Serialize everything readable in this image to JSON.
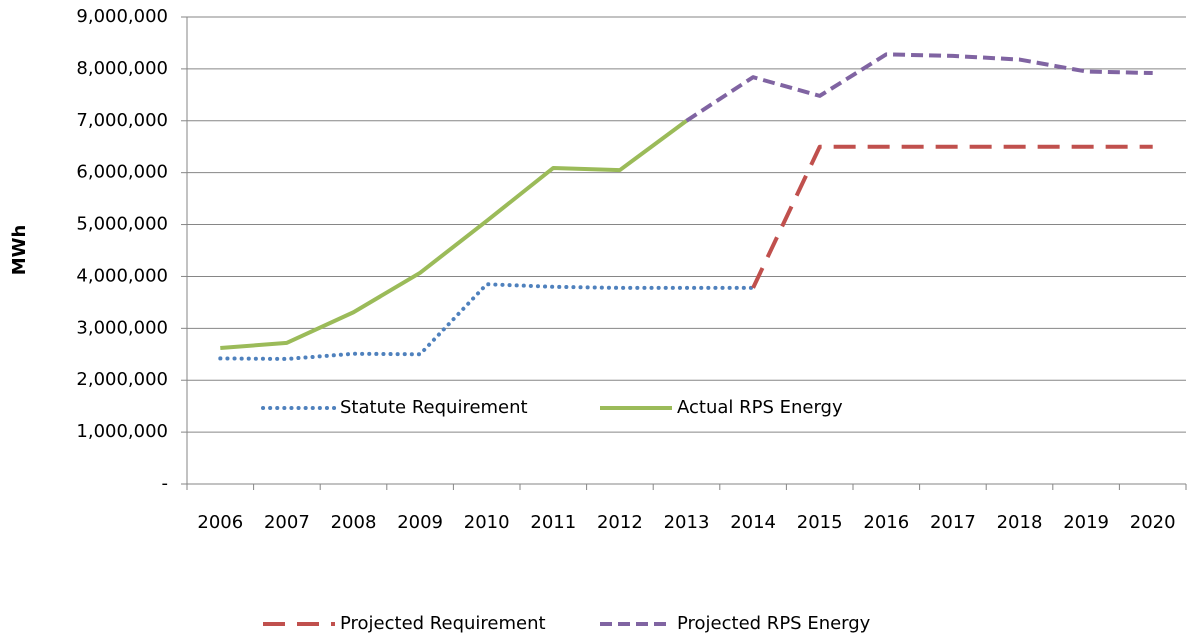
{
  "chart_data": {
    "type": "line",
    "y_label": "MWh",
    "categories": [
      "2006",
      "2007",
      "2008",
      "2009",
      "2010",
      "2011",
      "2012",
      "2013",
      "2014",
      "2015",
      "2016",
      "2017",
      "2018",
      "2019",
      "2020"
    ],
    "series": [
      {
        "name": "Statute Requirement",
        "color": "#4f81bd",
        "style": "dotted",
        "values": [
          2420000,
          2410000,
          2510000,
          2500000,
          3850000,
          3800000,
          3780000,
          3780000,
          3780000,
          null,
          null,
          null,
          null,
          null,
          null
        ]
      },
      {
        "name": "Actual RPS Energy",
        "color": "#9bbb59",
        "style": "solid",
        "values": [
          2620000,
          2720000,
          3310000,
          4070000,
          5070000,
          6090000,
          6050000,
          7000000,
          null,
          null,
          null,
          null,
          null,
          null,
          null
        ]
      },
      {
        "name": "Projected Requirement",
        "color": "#c0504d",
        "style": "longdash",
        "values": [
          null,
          null,
          null,
          null,
          null,
          null,
          null,
          null,
          3780000,
          6500000,
          6500000,
          6500000,
          6500000,
          6500000,
          6500000
        ]
      },
      {
        "name": "Projected RPS Energy",
        "color": "#8064a2",
        "style": "dash",
        "values": [
          null,
          null,
          null,
          null,
          null,
          null,
          null,
          7000000,
          7840000,
          7480000,
          8280000,
          8250000,
          8180000,
          7950000,
          7920000
        ]
      }
    ],
    "ylim": [
      0,
      9000000
    ],
    "yticks": [
      {
        "value": 0,
        "label": "-"
      },
      {
        "value": 1000000,
        "label": "1,000,000"
      },
      {
        "value": 2000000,
        "label": "2,000,000"
      },
      {
        "value": 3000000,
        "label": "3,000,000"
      },
      {
        "value": 4000000,
        "label": "4,000,000"
      },
      {
        "value": 5000000,
        "label": "5,000,000"
      },
      {
        "value": 6000000,
        "label": "6,000,000"
      },
      {
        "value": 7000000,
        "label": "7,000,000"
      },
      {
        "value": 8000000,
        "label": "8,000,000"
      },
      {
        "value": 9000000,
        "label": "9,000,000"
      }
    ],
    "grid": true
  }
}
